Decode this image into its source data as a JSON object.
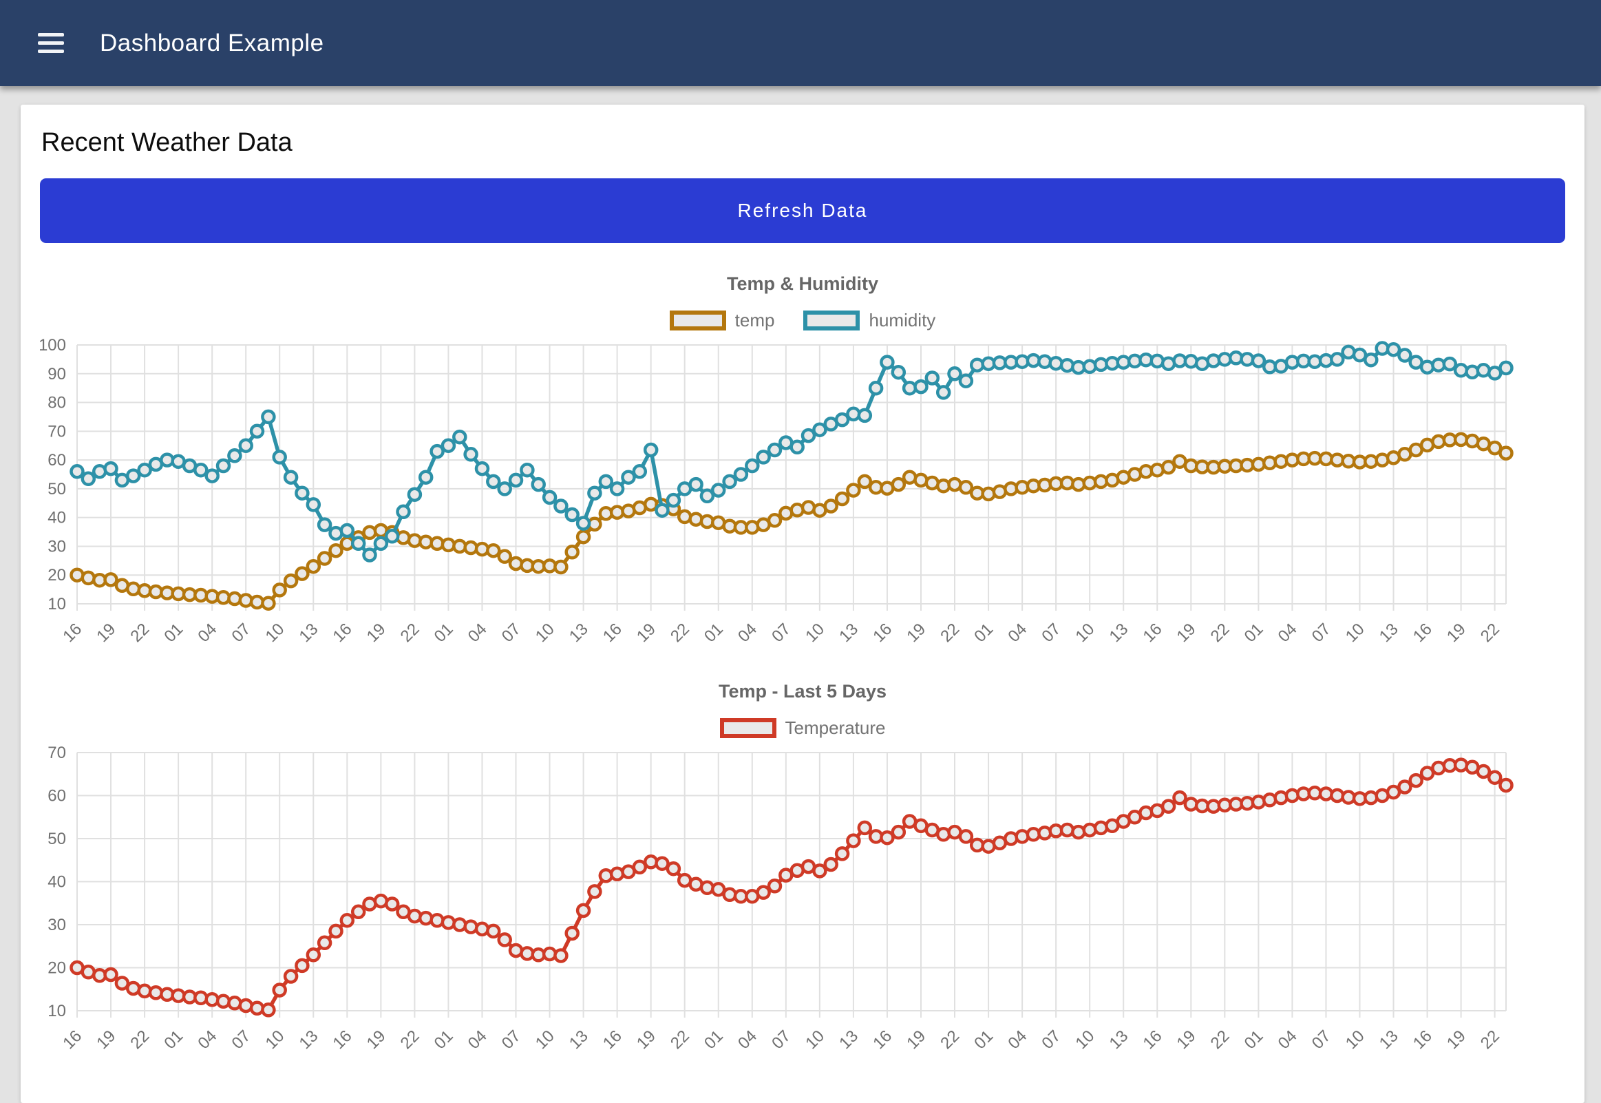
{
  "header": {
    "title": "Dashboard Example"
  },
  "page": {
    "heading": "Recent Weather Data",
    "refresh_button": "Refresh Data"
  },
  "colors": {
    "header_bg": "#2a4168",
    "page_bg": "#e3e3e3",
    "card_bg": "#ffffff",
    "button_bg": "#2b3cd3",
    "grid": "#e0e0e0",
    "tick_text": "#707070",
    "title_text": "#666666",
    "point_fill": "#e9e9e9",
    "temp": "#b4770d",
    "humidity": "#2d91a8",
    "temperature": "#cf3a26"
  },
  "chart_data": [
    {
      "type": "line",
      "title": "Temp & Humidity",
      "legend_position": "top",
      "grid": true,
      "ylim": [
        10,
        100
      ],
      "y_ticks": [
        100,
        90,
        80,
        70,
        60,
        50,
        40,
        30,
        20,
        10
      ],
      "x_label_every": 3,
      "labels": [
        "16",
        "17",
        "18",
        "19",
        "20",
        "21",
        "22",
        "23",
        "00",
        "01",
        "02",
        "03",
        "04",
        "05",
        "06",
        "07",
        "08",
        "09",
        "10",
        "11",
        "12",
        "13",
        "14",
        "15",
        "16",
        "17",
        "18",
        "19",
        "20",
        "21",
        "22",
        "23",
        "00",
        "01",
        "02",
        "03",
        "04",
        "05",
        "06",
        "07",
        "08",
        "09",
        "10",
        "11",
        "12",
        "13",
        "14",
        "15",
        "16",
        "17",
        "18",
        "19",
        "20",
        "21",
        "22",
        "23",
        "00",
        "01",
        "02",
        "03",
        "04",
        "05",
        "06",
        "07",
        "08",
        "09",
        "10",
        "11",
        "12",
        "13",
        "14",
        "15",
        "16",
        "17",
        "18",
        "19",
        "20",
        "21",
        "22",
        "23",
        "00",
        "01",
        "02",
        "03",
        "04",
        "05",
        "06",
        "07",
        "08",
        "09",
        "10",
        "11",
        "12",
        "13",
        "14",
        "15",
        "16",
        "17",
        "18",
        "19",
        "20",
        "21",
        "22",
        "23",
        "00",
        "01",
        "02",
        "03",
        "04",
        "05",
        "06",
        "07",
        "08",
        "09",
        "10",
        "11",
        "12",
        "13",
        "14",
        "15",
        "16",
        "17",
        "18",
        "19",
        "20",
        "21",
        "22",
        "23"
      ],
      "legend": [
        {
          "label": "temp",
          "color": "#b4770d"
        },
        {
          "label": "humidity",
          "color": "#2d91a8"
        }
      ],
      "series": [
        {
          "name": "temp",
          "color": "#b4770d",
          "values": [
            20,
            19,
            18.2,
            18.4,
            16.4,
            15.2,
            14.6,
            14.2,
            13.8,
            13.5,
            13.2,
            13,
            12.6,
            12.2,
            11.8,
            11.2,
            10.6,
            10.2,
            14.8,
            18,
            20.5,
            23,
            25.8,
            28.5,
            31,
            33,
            34.8,
            35.5,
            34.8,
            33,
            32,
            31.5,
            31,
            30.5,
            30,
            29.5,
            29,
            28.5,
            26.5,
            24,
            23.3,
            23,
            23.2,
            22.8,
            28,
            33.3,
            37.7,
            41.4,
            41.8,
            42.3,
            43.4,
            44.6,
            44.2,
            43,
            40.3,
            39.4,
            38.6,
            38.2,
            37,
            36.6,
            36.6,
            37.5,
            39,
            41.5,
            42.6,
            43.5,
            42.5,
            44,
            46.5,
            49.5,
            52.5,
            50.5,
            50.2,
            51.5,
            54,
            53,
            52,
            51,
            51.5,
            50.5,
            48.5,
            48.2,
            49,
            50,
            50.5,
            51,
            51.3,
            51.8,
            52,
            51.5,
            52,
            52.5,
            53,
            54,
            55,
            56,
            56.5,
            57.5,
            59.5,
            58,
            57.6,
            57.5,
            57.8,
            58,
            58.2,
            58.5,
            59,
            59.5,
            60,
            60.4,
            60.6,
            60.4,
            60,
            59.6,
            59.3,
            59.5,
            60,
            60.8,
            62,
            63.5,
            65.2,
            66.4,
            67,
            67.1,
            66.6,
            65.6,
            64.2,
            62.4
          ]
        },
        {
          "name": "humidity",
          "color": "#2d91a8",
          "values": [
            56,
            53.5,
            56,
            57,
            53,
            54.5,
            56.5,
            58.5,
            60,
            59.5,
            58,
            56.5,
            54.5,
            58,
            61.5,
            65,
            70,
            75,
            61,
            54,
            48.5,
            44.5,
            37.5,
            34.5,
            35.5,
            31,
            27,
            31,
            33.5,
            42,
            48,
            54,
            63,
            65,
            68,
            62,
            57,
            52.5,
            50,
            53,
            56.5,
            51.5,
            47,
            44,
            41,
            38,
            48.5,
            52.5,
            50,
            54,
            56,
            63.5,
            42.5,
            46,
            50,
            51.5,
            47.5,
            49.5,
            52.5,
            55,
            58,
            61,
            63.5,
            66,
            64.5,
            68.5,
            70.5,
            72.5,
            74,
            76,
            75.5,
            85,
            94,
            90.5,
            85,
            85.5,
            88.5,
            83.5,
            90,
            87.5,
            93,
            93.5,
            93.8,
            94,
            94.2,
            94.6,
            94.2,
            93.6,
            92.9,
            92.2,
            92.5,
            93.2,
            93.6,
            94,
            94.4,
            94.8,
            94.4,
            93.5,
            94.5,
            94.3,
            93.5,
            94.5,
            95,
            95.5,
            95,
            94.5,
            92.4,
            92.6,
            94,
            94.4,
            94.2,
            94.6,
            95,
            97.5,
            96.5,
            94.8,
            98.8,
            98.4,
            96.4,
            94,
            92.3,
            93,
            93.4,
            91.2,
            90.6,
            91.2,
            90.2,
            92
          ]
        }
      ]
    },
    {
      "type": "line",
      "title": "Temp - Last 5 Days",
      "legend_position": "top",
      "grid": true,
      "ylim": [
        10,
        70
      ],
      "y_ticks": [
        70,
        60,
        50,
        40,
        30,
        20,
        10
      ],
      "x_label_every": 3,
      "labels": [
        "16",
        "17",
        "18",
        "19",
        "20",
        "21",
        "22",
        "23",
        "00",
        "01",
        "02",
        "03",
        "04",
        "05",
        "06",
        "07",
        "08",
        "09",
        "10",
        "11",
        "12",
        "13",
        "14",
        "15",
        "16",
        "17",
        "18",
        "19",
        "20",
        "21",
        "22",
        "23",
        "00",
        "01",
        "02",
        "03",
        "04",
        "05",
        "06",
        "07",
        "08",
        "09",
        "10",
        "11",
        "12",
        "13",
        "14",
        "15",
        "16",
        "17",
        "18",
        "19",
        "20",
        "21",
        "22",
        "23",
        "00",
        "01",
        "02",
        "03",
        "04",
        "05",
        "06",
        "07",
        "08",
        "09",
        "10",
        "11",
        "12",
        "13",
        "14",
        "15",
        "16",
        "17",
        "18",
        "19",
        "20",
        "21",
        "22",
        "23",
        "00",
        "01",
        "02",
        "03",
        "04",
        "05",
        "06",
        "07",
        "08",
        "09",
        "10",
        "11",
        "12",
        "13",
        "14",
        "15",
        "16",
        "17",
        "18",
        "19",
        "20",
        "21",
        "22",
        "23",
        "00",
        "01",
        "02",
        "03",
        "04",
        "05",
        "06",
        "07",
        "08",
        "09",
        "10",
        "11",
        "12",
        "13",
        "14",
        "15",
        "16",
        "17",
        "18",
        "19",
        "20",
        "21",
        "22",
        "23"
      ],
      "legend": [
        {
          "label": "Temperature",
          "color": "#cf3a26"
        }
      ],
      "series": [
        {
          "name": "Temperature",
          "color": "#cf3a26",
          "values": [
            20,
            19,
            18.2,
            18.4,
            16.4,
            15.2,
            14.6,
            14.2,
            13.8,
            13.5,
            13.2,
            13,
            12.6,
            12.2,
            11.8,
            11.2,
            10.6,
            10.2,
            14.8,
            18,
            20.5,
            23,
            25.8,
            28.5,
            31,
            33,
            34.8,
            35.5,
            34.8,
            33,
            32,
            31.5,
            31,
            30.5,
            30,
            29.5,
            29,
            28.5,
            26.5,
            24,
            23.3,
            23,
            23.2,
            22.8,
            28,
            33.3,
            37.7,
            41.4,
            41.8,
            42.3,
            43.4,
            44.6,
            44.2,
            43,
            40.3,
            39.4,
            38.6,
            38.2,
            37,
            36.6,
            36.6,
            37.5,
            39,
            41.5,
            42.6,
            43.5,
            42.5,
            44,
            46.5,
            49.5,
            52.5,
            50.5,
            50.2,
            51.5,
            54,
            53,
            52,
            51,
            51.5,
            50.5,
            48.5,
            48.2,
            49,
            50,
            50.5,
            51,
            51.3,
            51.8,
            52,
            51.5,
            52,
            52.5,
            53,
            54,
            55,
            56,
            56.5,
            57.5,
            59.5,
            58,
            57.6,
            57.5,
            57.8,
            58,
            58.2,
            58.5,
            59,
            59.5,
            60,
            60.4,
            60.6,
            60.4,
            60,
            59.6,
            59.3,
            59.5,
            60,
            60.8,
            62,
            63.5,
            65.2,
            66.4,
            67,
            67.1,
            66.6,
            65.6,
            64.2,
            62.4
          ]
        }
      ]
    }
  ]
}
